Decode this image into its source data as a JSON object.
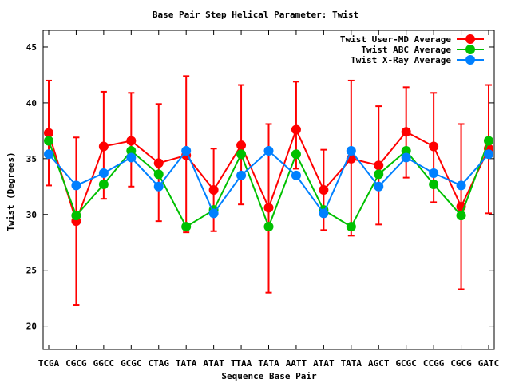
{
  "chart_data": {
    "type": "line",
    "title": "Base Pair Step Helical Parameter: Twist",
    "xlabel": "Sequence Base Pair",
    "ylabel": "Twist (Degrees)",
    "ylim": [
      17.9,
      46.5
    ],
    "yticks": [
      20,
      25,
      30,
      35,
      40,
      45
    ],
    "grid": false,
    "legend_position": "top-right",
    "categories": [
      "TCGA",
      "CGCG",
      "GGCC",
      "GCGC",
      "CTAG",
      "TATA",
      "ATAT",
      "TTAA",
      "TATA",
      "AATT",
      "ATAT",
      "TATA",
      "AGCT",
      "GCGC",
      "CCGG",
      "CGCG",
      "GATC"
    ],
    "series": [
      {
        "name": "Twist User-MD Average",
        "color": "#ff0000",
        "values": [
          37.3,
          29.4,
          36.1,
          36.6,
          34.6,
          35.3,
          32.2,
          36.2,
          30.6,
          37.6,
          32.2,
          35.0,
          34.4,
          37.4,
          36.1,
          30.7,
          35.9
        ],
        "error_high": [
          42.0,
          36.9,
          41.0,
          40.9,
          39.9,
          42.4,
          35.9,
          41.6,
          38.1,
          41.9,
          35.8,
          42.0,
          39.7,
          41.4,
          40.9,
          38.1,
          41.6
        ],
        "error_low": [
          32.6,
          21.9,
          31.4,
          32.5,
          29.4,
          28.4,
          28.5,
          30.9,
          23.0,
          34.1,
          28.6,
          28.1,
          29.1,
          33.3,
          31.1,
          23.3,
          30.1
        ]
      },
      {
        "name": "Twist ABC Average",
        "color": "#00c000",
        "values": [
          36.6,
          29.9,
          32.7,
          35.7,
          33.6,
          28.9,
          30.4,
          35.4,
          28.9,
          35.4,
          30.4,
          28.9,
          33.6,
          35.7,
          32.7,
          29.9,
          36.6
        ]
      },
      {
        "name": "Twist X-Ray Average",
        "color": "#0080ff",
        "values": [
          35.4,
          32.6,
          33.7,
          35.1,
          32.5,
          35.7,
          30.1,
          33.5,
          35.7,
          33.5,
          30.1,
          35.7,
          32.5,
          35.1,
          33.7,
          32.6,
          35.4
        ]
      }
    ]
  }
}
